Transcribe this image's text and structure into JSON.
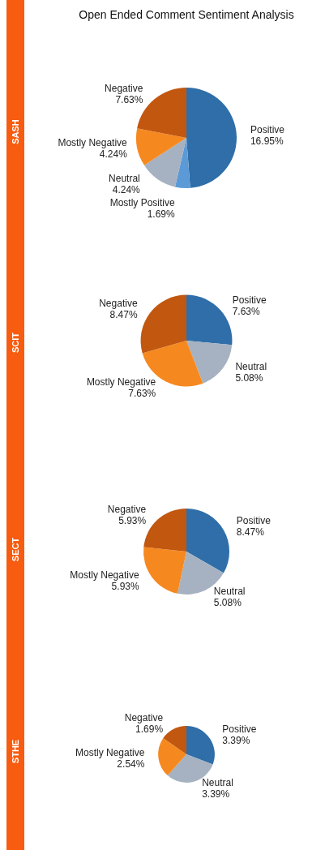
{
  "chart_data": [
    {
      "type": "pie",
      "title": "Open Ended Comment Sentiment Analysis",
      "ylabel": "SASH",
      "categories": [
        "Positive",
        "Mostly Positive",
        "Neutral",
        "Mostly Negative",
        "Negative"
      ],
      "values": [
        16.95,
        1.69,
        4.24,
        4.24,
        7.63
      ],
      "value_labels": [
        "16.95%",
        "1.69%",
        "4.24%",
        "4.24%",
        "7.63%"
      ],
      "colors": [
        "#2f6ea8",
        "#5b9ad6",
        "#a6b2c1",
        "#f5891f",
        "#c2570f"
      ]
    },
    {
      "type": "pie",
      "ylabel": "SCIT",
      "categories": [
        "Positive",
        "Neutral",
        "Mostly Negative",
        "Negative"
      ],
      "values": [
        7.63,
        5.08,
        7.63,
        8.47
      ],
      "value_labels": [
        "7.63%",
        "5.08%",
        "7.63%",
        "8.47%"
      ],
      "colors": [
        "#2f6ea8",
        "#a6b2c1",
        "#f5891f",
        "#c2570f"
      ]
    },
    {
      "type": "pie",
      "ylabel": "SECT",
      "categories": [
        "Positive",
        "Neutral",
        "Mostly Negative",
        "Negative"
      ],
      "values": [
        8.47,
        5.08,
        5.93,
        5.93
      ],
      "value_labels": [
        "8.47%",
        "5.08%",
        "5.93%",
        "5.93%"
      ],
      "colors": [
        "#2f6ea8",
        "#a6b2c1",
        "#f5891f",
        "#c2570f"
      ]
    },
    {
      "type": "pie",
      "ylabel": "STHE",
      "categories": [
        "Positive",
        "Neutral",
        "Mostly Negative",
        "Negative"
      ],
      "values": [
        3.39,
        3.39,
        2.54,
        1.69
      ],
      "value_labels": [
        "3.39%",
        "3.39%",
        "2.54%",
        "1.69%"
      ],
      "colors": [
        "#2f6ea8",
        "#a6b2c1",
        "#f5891f",
        "#c2570f"
      ]
    }
  ]
}
